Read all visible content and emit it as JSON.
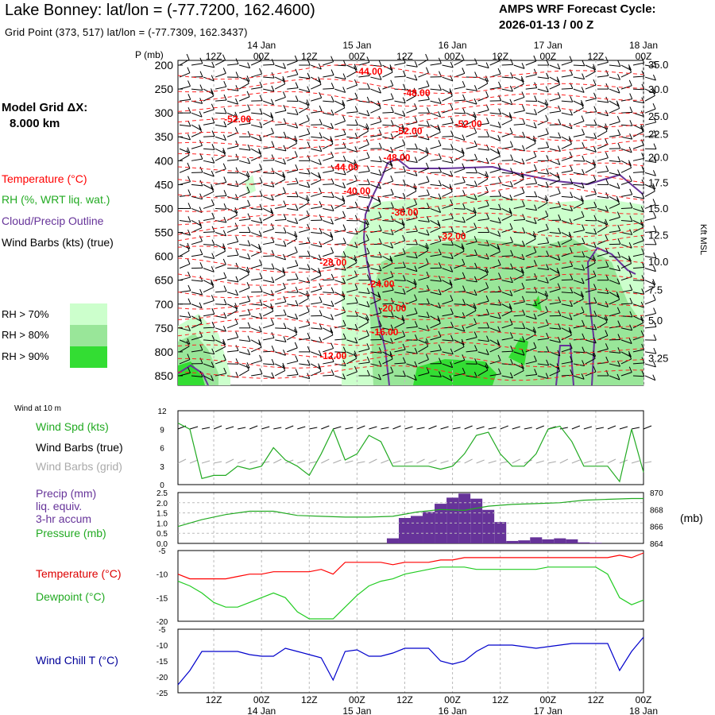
{
  "header": {
    "title": "Lake Bonney:  lat/lon = (-77.7200, 162.4600)",
    "subtitle": "Grid Point (373, 517) lat/lon = (-77.7309, 162.3437)",
    "cycle_line1": "AMPS WRF Forecast Cycle:",
    "cycle_line2": "2026-01-13 / 00  Z"
  },
  "model_grid": {
    "line1": "Model Grid ΔX:",
    "line2": "8.000 km"
  },
  "legend": {
    "temperature": "Temperature (°C)",
    "rh": "RH (%, WRT liq. wat.)",
    "cloud": "Cloud/Precip Outline",
    "wind": "Wind Barbs (kts) (true)",
    "rh70": "RH > 70%",
    "rh80": "RH > 80%",
    "rh90": "RH > 90%"
  },
  "colors": {
    "temperature": "#ff0000",
    "rh_text": "#22aa22",
    "cloud": "#663399",
    "rh70": "#ccffcc",
    "rh80": "#99e699",
    "rh90": "#33dd33",
    "precip": "#663399",
    "pressure": "#22aa22",
    "dewpoint": "#22cc22",
    "windchill": "#0000cc",
    "wind_speed": "#22aa22",
    "grid_barbs": "#aaaaaa"
  },
  "time_axis": {
    "top_hours": [
      "12Z",
      "00Z",
      "12Z",
      "00Z",
      "12Z",
      "00Z",
      "12Z",
      "00Z",
      "12Z",
      "00Z"
    ],
    "top_dates": [
      "14 Jan",
      "15 Jan",
      "16 Jan",
      "17 Jan",
      "18 Jan"
    ],
    "bottom_hours": [
      "12Z",
      "00Z",
      "12Z",
      "00Z",
      "12Z",
      "00Z",
      "12Z",
      "00Z",
      "12Z",
      "00Z"
    ],
    "bottom_dates": [
      "14 Jan",
      "15 Jan",
      "16 Jan",
      "17 Jan",
      "18 Jan"
    ]
  },
  "labels": {
    "p_axis": "P (mb)",
    "kft_axis": "Kft MSL",
    "wind10m": "Wind at 10 m",
    "wind_spd": "Wind Spd (kts)",
    "wind_barbs_true": "Wind Barbs (true)",
    "wind_barbs_grid": "Wind Barbs (grid)",
    "precip1": "Precip (mm)",
    "precip2": "liq. equiv.",
    "precip3": "3-hr accum",
    "pressure": "Pressure (mb)",
    "pressure_unit": "(mb)",
    "temperature": "Temperature (°C)",
    "dewpoint": "Dewpoint (°C)",
    "windchill": "Wind Chill T (°C)"
  },
  "chart_data": [
    {
      "type": "heatmap",
      "name": "cross-section",
      "x_range": [
        0,
        117
      ],
      "x_units": "forecast hour",
      "pressure_levels": [
        200,
        250,
        300,
        350,
        400,
        450,
        500,
        550,
        600,
        650,
        700,
        750,
        800,
        850
      ],
      "ylim": [
        190,
        870
      ],
      "kft_ticks": [
        "35.0",
        "30.0",
        "25.0",
        "22.5",
        "20.0",
        "17.5",
        "15.0",
        "12.5",
        "10.0",
        "7.5",
        "5.0",
        "3.25"
      ],
      "kft_pressure": [
        198,
        250,
        306,
        344,
        392,
        445,
        499,
        555,
        611,
        670,
        734,
        813,
        872
      ],
      "temperature_labels": [
        {
          "text": "-44.00",
          "t": 48,
          "p": 220
        },
        {
          "text": "-48.00",
          "t": 60,
          "p": 265
        },
        {
          "text": "-52.00",
          "t": 15,
          "p": 320
        },
        {
          "text": "-52.00",
          "t": 73,
          "p": 330
        },
        {
          "text": "-52.00",
          "t": 58,
          "p": 345
        },
        {
          "text": "-48.00",
          "t": 55,
          "p": 400
        },
        {
          "text": "-44.00",
          "t": 42,
          "p": 420
        },
        {
          "text": "-40.00",
          "t": 45,
          "p": 470
        },
        {
          "text": "-36.00",
          "t": 57,
          "p": 515
        },
        {
          "text": "-32.00",
          "t": 69,
          "p": 565
        },
        {
          "text": "-28.00",
          "t": 39,
          "p": 620
        },
        {
          "text": "-24.00",
          "t": 51,
          "p": 665
        },
        {
          "text": "-20.00",
          "t": 54,
          "p": 715
        },
        {
          "text": "-16.00",
          "t": 52,
          "p": 765
        },
        {
          "text": "-12.00",
          "t": 39,
          "p": 815
        }
      ]
    },
    {
      "type": "line",
      "name": "wind-speed",
      "ylim": [
        0,
        12
      ],
      "yticks": [
        "12",
        "9",
        "6",
        "3",
        "0"
      ],
      "x": [
        0,
        3,
        6,
        9,
        12,
        15,
        18,
        21,
        24,
        27,
        30,
        33,
        36,
        39,
        42,
        45,
        48,
        51,
        54,
        57,
        60,
        63,
        66,
        69,
        72,
        75,
        78,
        81,
        84,
        87,
        90,
        93,
        96,
        99,
        102,
        105,
        108,
        111,
        114,
        117
      ],
      "values": [
        10,
        9,
        1,
        1.5,
        1.5,
        3,
        2.5,
        3,
        6,
        4,
        3,
        1.5,
        5,
        9,
        4,
        5,
        8,
        7,
        3,
        3,
        3,
        3,
        2.5,
        3,
        5,
        8,
        8.5,
        5,
        3,
        3,
        5,
        9,
        9.5,
        7,
        3,
        3,
        3,
        0.5,
        9,
        2
      ]
    },
    {
      "type": "bar",
      "name": "precip",
      "ylim": [
        0,
        2.5
      ],
      "yticks": [
        "2.5",
        "2.0",
        "1.5",
        "1.0",
        "0.5",
        "0.0"
      ],
      "x": [
        54,
        57,
        60,
        63,
        66,
        69,
        72,
        75,
        78,
        81,
        84,
        87,
        90,
        93,
        96,
        99,
        102,
        105
      ],
      "values": [
        0.25,
        1.25,
        1.35,
        1.55,
        1.95,
        2.25,
        2.45,
        2.2,
        1.65,
        1.05,
        0.12,
        0.15,
        0.3,
        0.2,
        0.25,
        0.2,
        0.05,
        0.03
      ]
    },
    {
      "type": "line",
      "name": "pressure",
      "ylim": [
        864,
        870
      ],
      "yticks": [
        "870",
        "868",
        "866",
        "864"
      ],
      "x": [
        0,
        6,
        12,
        18,
        24,
        30,
        36,
        42,
        48,
        54,
        60,
        66,
        72,
        78,
        84,
        90,
        96,
        102,
        108,
        114,
        117
      ],
      "values": [
        866,
        866.8,
        867.4,
        867.8,
        867.8,
        867.3,
        867.2,
        867.1,
        867.1,
        867.2,
        867.7,
        868,
        867.9,
        868.4,
        868.6,
        868.7,
        868.8,
        869.1,
        869.2,
        869.3,
        869.3
      ]
    },
    {
      "type": "line",
      "name": "temperature",
      "ylim": [
        -20,
        -5
      ],
      "yticks": [
        "-5",
        "-10",
        "-15",
        "-20"
      ],
      "x": [
        0,
        3,
        6,
        9,
        12,
        15,
        18,
        21,
        24,
        27,
        30,
        33,
        36,
        39,
        42,
        45,
        48,
        51,
        54,
        57,
        60,
        63,
        66,
        69,
        72,
        75,
        78,
        81,
        84,
        87,
        90,
        93,
        96,
        99,
        102,
        105,
        108,
        111,
        114,
        117
      ],
      "values": [
        -10,
        -11,
        -11,
        -11,
        -11,
        -10.5,
        -10,
        -10,
        -9.5,
        -9.5,
        -9.5,
        -9.5,
        -9,
        -10,
        -7.5,
        -7.5,
        -7.5,
        -7.5,
        -8,
        -7.5,
        -7.5,
        -7.5,
        -7,
        -7,
        -6.5,
        -6.5,
        -6.5,
        -6.5,
        -6.5,
        -6.5,
        -6.5,
        -6.5,
        -6.5,
        -6.5,
        -6.5,
        -6.5,
        -6.5,
        -6,
        -6.5,
        -5.5
      ]
    },
    {
      "type": "line",
      "name": "dewpoint",
      "ylim": [
        -20,
        -5
      ],
      "x": [
        0,
        3,
        6,
        9,
        12,
        15,
        18,
        21,
        24,
        27,
        30,
        33,
        36,
        39,
        42,
        45,
        48,
        51,
        54,
        57,
        60,
        63,
        66,
        69,
        72,
        75,
        78,
        81,
        84,
        87,
        90,
        93,
        96,
        99,
        102,
        105,
        108,
        111,
        114,
        117
      ],
      "values": [
        -11.5,
        -12.5,
        -14,
        -16,
        -17,
        -17,
        -16,
        -15,
        -14,
        -15,
        -18,
        -19.5,
        -19.5,
        -19.5,
        -17,
        -14.5,
        -12.5,
        -11.5,
        -11,
        -10,
        -9.5,
        -9,
        -8.5,
        -8.5,
        -8.5,
        -9,
        -9,
        -9,
        -9,
        -9,
        -9,
        -8.5,
        -8.5,
        -8.5,
        -8.5,
        -8.5,
        -10,
        -15,
        -16.5,
        -15.5
      ]
    },
    {
      "type": "line",
      "name": "wind-chill",
      "ylim": [
        -25,
        -5
      ],
      "yticks": [
        "-5",
        "-10",
        "-15",
        "-20",
        "-25"
      ],
      "x": [
        0,
        3,
        6,
        9,
        12,
        15,
        18,
        21,
        24,
        27,
        30,
        33,
        36,
        39,
        42,
        45,
        48,
        51,
        54,
        57,
        60,
        63,
        66,
        69,
        72,
        75,
        78,
        81,
        84,
        87,
        90,
        93,
        96,
        99,
        102,
        105,
        108,
        111,
        114,
        117
      ],
      "values": [
        -22.5,
        -18,
        -12,
        -12,
        -12,
        -12,
        -13,
        -13.5,
        -13.5,
        -11,
        -12,
        -13,
        -14,
        -21,
        -12,
        -11.5,
        -13.5,
        -13.5,
        -12.5,
        -11,
        -11,
        -11,
        -15,
        -16,
        -15,
        -12,
        -10,
        -10,
        -10,
        -10.5,
        -11,
        -10.5,
        -10,
        -9.5,
        -9.5,
        -9.5,
        -9.5,
        -18,
        -12,
        -7.5
      ]
    }
  ]
}
